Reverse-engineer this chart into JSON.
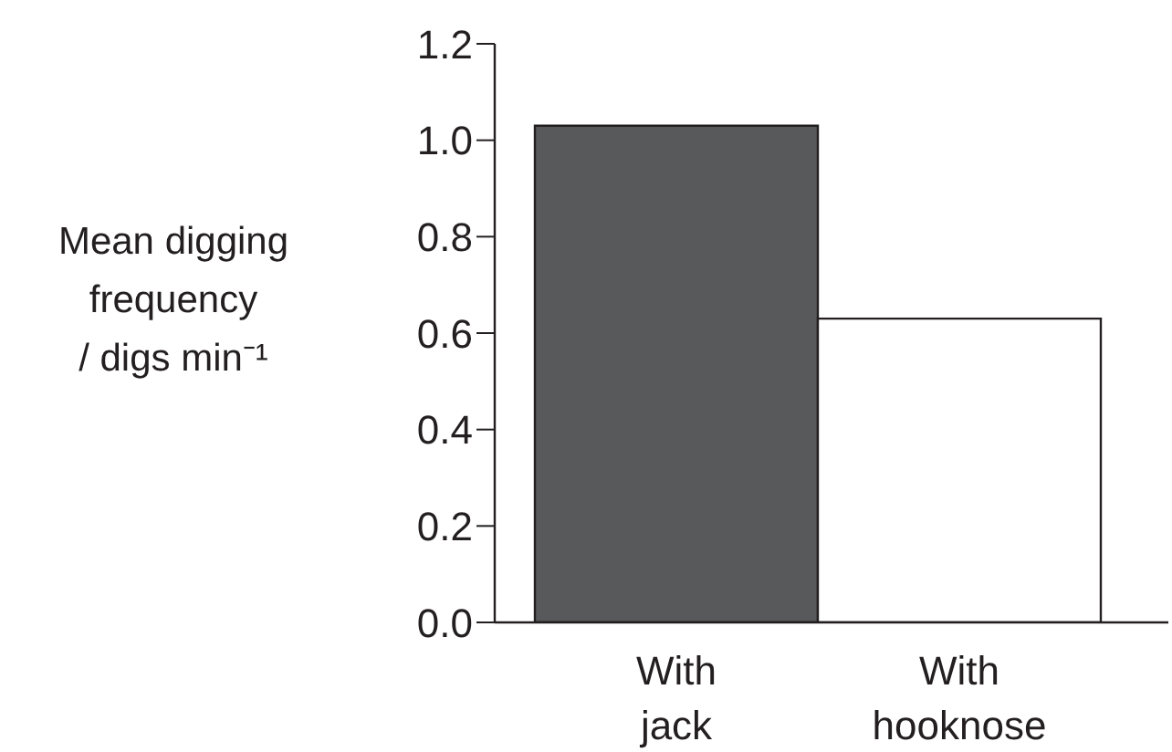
{
  "chart_data": {
    "type": "bar",
    "ylabel": "Mean digging frequency / digs min⁻¹",
    "categories": [
      "With jack",
      "With hooknose"
    ],
    "values": [
      1.03,
      0.63
    ],
    "colors": [
      "#58595b",
      "#ffffff"
    ],
    "ylim": [
      0,
      1.2
    ],
    "yticks": [
      {
        "value": 0,
        "label": "0.0"
      },
      0.2,
      0.4,
      0.6,
      0.8,
      {
        "value": 1,
        "label": "1.0"
      },
      1.2
    ],
    "grid": false,
    "legend": false
  }
}
